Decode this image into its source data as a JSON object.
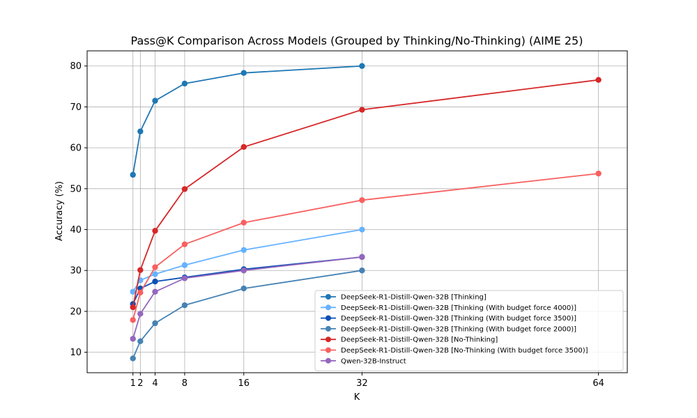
{
  "chart_data": {
    "type": "line",
    "title": "Pass@K Comparison Across Models (Grouped by Thinking/No-Thinking) (AIME 25)",
    "xlabel": "K",
    "ylabel": "Accuracy (%)",
    "x_ticks": [
      1,
      2,
      4,
      8,
      16,
      32,
      64
    ],
    "y_ticks": [
      10,
      20,
      30,
      40,
      50,
      60,
      70,
      80
    ],
    "xlim": [
      -5.2,
      67.9
    ],
    "ylim": [
      5.0,
      83.7
    ],
    "grid": true,
    "legend_position": "lower-right",
    "series": [
      {
        "name": "DeepSeek-R1-Distill-Qwen-32B [Thinking]",
        "color": "#1f77b4",
        "x": [
          1,
          2,
          4,
          8,
          16,
          32
        ],
        "values": [
          53.4,
          64.0,
          71.5,
          75.7,
          78.3,
          80.0
        ]
      },
      {
        "name": "DeepSeek-R1-Distill-Qwen-32B [Thinking (With budget force 4000)]",
        "color": "#66b2ff",
        "x": [
          1,
          2,
          4,
          8,
          16,
          32
        ],
        "values": [
          24.8,
          27.6,
          29.1,
          31.3,
          35.0,
          40.0
        ]
      },
      {
        "name": "DeepSeek-R1-Distill-Qwen-32B [Thinking (With budget force 3500)]",
        "color": "#0a4fb5",
        "x": [
          1,
          2,
          4,
          8,
          16,
          32
        ],
        "values": [
          21.8,
          25.6,
          27.3,
          28.3,
          30.3,
          33.3
        ]
      },
      {
        "name": "DeepSeek-R1-Distill-Qwen-32B [Thinking (With budget force 2000)]",
        "color": "#4682b4",
        "x": [
          1,
          2,
          4,
          8,
          16,
          32
        ],
        "values": [
          8.5,
          12.7,
          17.1,
          21.5,
          25.6,
          30.0
        ]
      },
      {
        "name": "DeepSeek-R1-Distill-Qwen-32B [No-Thinking]",
        "color": "#d62728",
        "x": [
          1,
          2,
          4,
          8,
          16,
          32,
          64
        ],
        "values": [
          21.0,
          30.1,
          39.7,
          49.9,
          60.2,
          69.3,
          76.6
        ]
      },
      {
        "name": "DeepSeek-R1-Distill-Qwen-32B [No-Thinking (With budget force 3500)]",
        "color": "#f76060",
        "x": [
          1,
          2,
          4,
          8,
          16,
          32,
          64
        ],
        "values": [
          17.9,
          24.6,
          30.8,
          36.4,
          41.7,
          47.2,
          53.7
        ]
      },
      {
        "name": "Qwen-32B-Instruct",
        "color": "#9467bd",
        "x": [
          1,
          2,
          4,
          8,
          16,
          32
        ],
        "values": [
          13.3,
          19.4,
          24.8,
          28.1,
          30.0,
          33.3
        ]
      }
    ]
  }
}
